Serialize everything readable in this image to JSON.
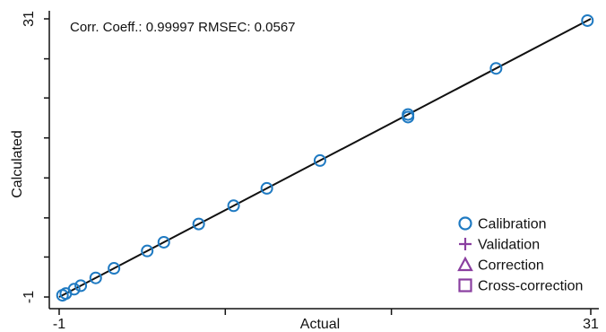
{
  "chart_data": {
    "type": "scatter",
    "stats_text": "Corr. Coeff.: 0.99997 RMSEC: 0.0567",
    "xlabel": "Actual",
    "ylabel": "Calculated",
    "xlim": [
      -1,
      31
    ],
    "ylim": [
      -1,
      31
    ],
    "x_tick_values": [
      -1,
      9,
      19,
      31
    ],
    "x_tick_labels": [
      "-1",
      "",
      "",
      "31"
    ],
    "y_tick_values": [
      -1,
      3.6,
      8.1,
      12.7,
      17.3,
      21.9,
      26.4,
      31
    ],
    "y_tick_labels": [
      "-1",
      "",
      "",
      "",
      "",
      "",
      "",
      "31"
    ],
    "grid": false,
    "legend_position": "bottom-right",
    "reference_line": {
      "x": [
        -1,
        31
      ],
      "y": [
        -1,
        31
      ],
      "color": "#111111"
    },
    "legend": [
      {
        "label": "Calibration",
        "marker": "circle",
        "color": "#1f7ac2"
      },
      {
        "label": "Validation",
        "marker": "plus",
        "color": "#8a3fa0"
      },
      {
        "label": "Correction",
        "marker": "triangle",
        "color": "#8a3fa0"
      },
      {
        "label": "Cross-correction",
        "marker": "square",
        "color": "#8a3fa0"
      }
    ],
    "series": [
      {
        "name": "Calibration",
        "marker": "circle",
        "color": "#1f7ac2",
        "x": [
          -0.8,
          -0.6,
          -0.1,
          0.3,
          1.2,
          2.3,
          4.3,
          5.3,
          7.4,
          9.5,
          11.5,
          14.7,
          20.0,
          20.0,
          25.3,
          30.8
        ],
        "y": [
          -0.8,
          -0.6,
          -0.1,
          0.3,
          1.2,
          2.3,
          4.3,
          5.3,
          7.4,
          9.5,
          11.5,
          14.7,
          19.7,
          20.0,
          25.3,
          30.8
        ]
      }
    ]
  }
}
